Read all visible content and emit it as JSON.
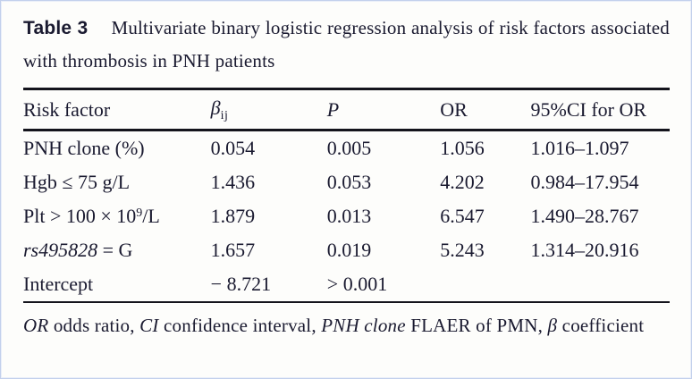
{
  "colors": {
    "text": "#1a1a30",
    "rule": "#14141c",
    "scan_border": "#c3d0ec",
    "background": "#fdfdfb"
  },
  "title": {
    "label": "Table 3",
    "caption": "Multivariate binary logistic regression analysis of risk factors associated with thrombosis in PNH patients"
  },
  "table": {
    "headers": {
      "risk_factor": "Risk factor",
      "beta_base": "β",
      "beta_sub": "ij",
      "p": "P",
      "or": "OR",
      "ci": "95%CI for OR"
    },
    "rows": [
      {
        "label_italic": "",
        "label_main": "PNH clone (%)",
        "label_sup": "",
        "label_end": "",
        "beta": "0.054",
        "p": "0.005",
        "or": "1.056",
        "ci": "1.016–1.097"
      },
      {
        "label_italic": "",
        "label_main": "Hgb ≤ 75 g/L",
        "label_sup": "",
        "label_end": "",
        "beta": "1.436",
        "p": "0.053",
        "or": "4.202",
        "ci": "0.984–17.954"
      },
      {
        "label_italic": "",
        "label_main": "Plt > 100 × 10",
        "label_sup": "9",
        "label_end": "/L",
        "beta": "1.879",
        "p": "0.013",
        "or": "6.547",
        "ci": "1.490–28.767"
      },
      {
        "label_italic": "rs495828",
        "label_main": " = G",
        "label_sup": "",
        "label_end": "",
        "beta": "1.657",
        "p": "0.019",
        "or": "5.243",
        "ci": "1.314–20.916"
      },
      {
        "label_italic": "",
        "label_main": "Intercept",
        "label_sup": "",
        "label_end": "",
        "beta": "− 8.721",
        "p": "> 0.001",
        "or": "",
        "ci": ""
      }
    ]
  },
  "footnote": {
    "segments": [
      {
        "text": "OR"
      },
      {
        "text": " odds ratio, "
      },
      {
        "text": "CI"
      },
      {
        "text": " confidence interval, "
      },
      {
        "text": "PNH clone"
      },
      {
        "text": " FLAER of PMN, "
      },
      {
        "text": "β"
      },
      {
        "text": " coefficient"
      }
    ]
  }
}
